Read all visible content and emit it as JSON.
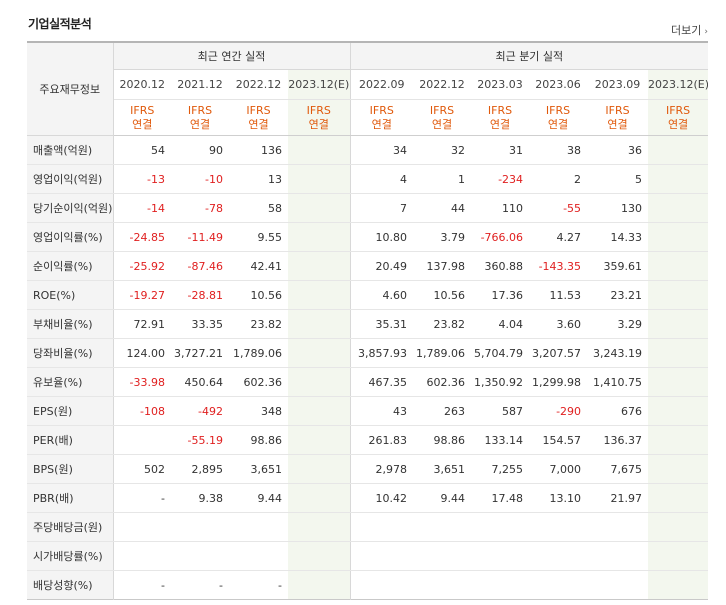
{
  "title": "기업실적분석",
  "more_label": "더보기",
  "header": {
    "label_col": "주요재무정보",
    "annual_group": "최근 연간 실적",
    "quarter_group": "최근 분기 실적",
    "annual_periods": [
      "2020.12",
      "2021.12",
      "2022.12",
      "2023.12(E)"
    ],
    "quarter_periods": [
      "2022.09",
      "2022.12",
      "2023.03",
      "2023.06",
      "2023.09",
      "2023.12(E)"
    ],
    "ifrs_top": "IFRS",
    "ifrs_bottom": "연결"
  },
  "rows": [
    {
      "label": "매출액(억원)",
      "values": [
        "54",
        "90",
        "136",
        "",
        "34",
        "32",
        "31",
        "38",
        "36",
        ""
      ]
    },
    {
      "label": "영업이익(억원)",
      "values": [
        "-13",
        "-10",
        "13",
        "",
        "4",
        "1",
        "-234",
        "2",
        "5",
        ""
      ]
    },
    {
      "label": "당기순이익(억원)",
      "values": [
        "-14",
        "-78",
        "58",
        "",
        "7",
        "44",
        "110",
        "-55",
        "130",
        ""
      ]
    },
    {
      "label": "영업이익률(%)",
      "values": [
        "-24.85",
        "-11.49",
        "9.55",
        "",
        "10.80",
        "3.79",
        "-766.06",
        "4.27",
        "14.33",
        ""
      ]
    },
    {
      "label": "순이익률(%)",
      "values": [
        "-25.92",
        "-87.46",
        "42.41",
        "",
        "20.49",
        "137.98",
        "360.88",
        "-143.35",
        "359.61",
        ""
      ]
    },
    {
      "label": "ROE(%)",
      "values": [
        "-19.27",
        "-28.81",
        "10.56",
        "",
        "4.60",
        "10.56",
        "17.36",
        "11.53",
        "23.21",
        ""
      ]
    },
    {
      "label": "부채비율(%)",
      "values": [
        "72.91",
        "33.35",
        "23.82",
        "",
        "35.31",
        "23.82",
        "4.04",
        "3.60",
        "3.29",
        ""
      ]
    },
    {
      "label": "당좌비율(%)",
      "values": [
        "124.00",
        "3,727.21",
        "1,789.06",
        "",
        "3,857.93",
        "1,789.06",
        "5,704.79",
        "3,207.57",
        "3,243.19",
        ""
      ]
    },
    {
      "label": "유보율(%)",
      "values": [
        "-33.98",
        "450.64",
        "602.36",
        "",
        "467.35",
        "602.36",
        "1,350.92",
        "1,299.98",
        "1,410.75",
        ""
      ]
    },
    {
      "label": "EPS(원)",
      "values": [
        "-108",
        "-492",
        "348",
        "",
        "43",
        "263",
        "587",
        "-290",
        "676",
        ""
      ]
    },
    {
      "label": "PER(배)",
      "values": [
        "",
        "-55.19",
        "98.86",
        "",
        "261.83",
        "98.86",
        "133.14",
        "154.57",
        "136.37",
        ""
      ]
    },
    {
      "label": "BPS(원)",
      "values": [
        "502",
        "2,895",
        "3,651",
        "",
        "2,978",
        "3,651",
        "7,255",
        "7,000",
        "7,675",
        ""
      ]
    },
    {
      "label": "PBR(배)",
      "values": [
        "-",
        "9.38",
        "9.44",
        "",
        "10.42",
        "9.44",
        "17.48",
        "13.10",
        "21.97",
        ""
      ]
    },
    {
      "label": "주당배당금(원)",
      "values": [
        "",
        "",
        "",
        "",
        "",
        "",
        "",
        "",
        "",
        ""
      ]
    },
    {
      "label": "시가배당률(%)",
      "values": [
        "",
        "",
        "",
        "",
        "",
        "",
        "",
        "",
        "",
        ""
      ]
    },
    {
      "label": "배당성향(%)",
      "values": [
        "-",
        "-",
        "-",
        "",
        "",
        "",
        "",
        "",
        "",
        ""
      ]
    }
  ],
  "colors": {
    "negative": "#e01f1f",
    "ifrs": "#e0590b",
    "estimate_bg": "#f3f7ee"
  }
}
